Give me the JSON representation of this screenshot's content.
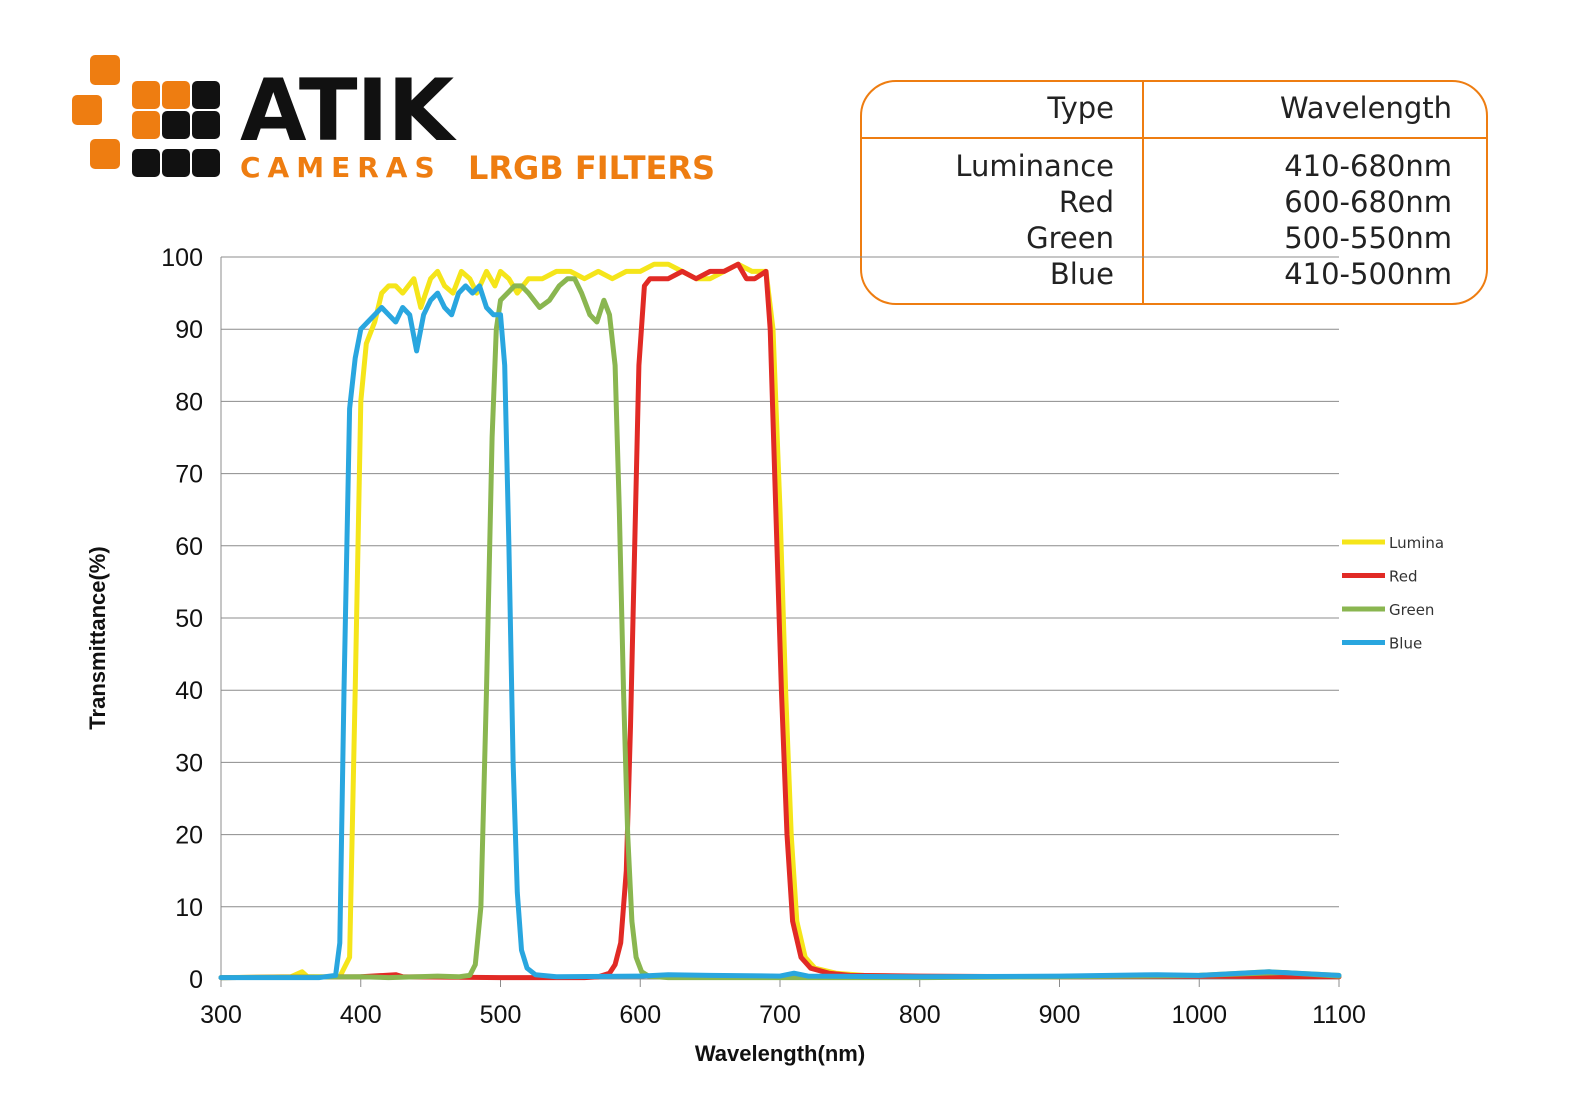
{
  "branding": {
    "logo_text": "ATIK",
    "logo_subtext": "CAMERAS",
    "page_title": "LRGB FILTERS",
    "colors": {
      "orange": "#ee7d11",
      "dark": "#111111"
    }
  },
  "filter_table": {
    "headers": [
      "Type",
      "Wavelength"
    ],
    "rows": [
      {
        "type": "Luminance",
        "wavelength": "410-680nm"
      },
      {
        "type": "Red",
        "wavelength": "600-680nm"
      },
      {
        "type": "Green",
        "wavelength": "500-550nm"
      },
      {
        "type": "Blue",
        "wavelength": "410-500nm"
      }
    ]
  },
  "chart_data": {
    "type": "line",
    "title": "",
    "xlabel": "Wavelength(nm)",
    "ylabel": "Transmittance(%)",
    "xlim": [
      300,
      1100
    ],
    "ylim": [
      0,
      100
    ],
    "xticks": [
      300,
      400,
      500,
      600,
      700,
      800,
      900,
      1000,
      1100
    ],
    "yticks": [
      0,
      10,
      20,
      30,
      40,
      50,
      60,
      70,
      80,
      90,
      100
    ],
    "grid": "horizontal",
    "legend_position": "right",
    "series": [
      {
        "name": "Lumina",
        "color": "#f5e51a",
        "points": [
          [
            300,
            0.2
          ],
          [
            350,
            0.3
          ],
          [
            358,
            1.0
          ],
          [
            362,
            0.3
          ],
          [
            385,
            0.3
          ],
          [
            392,
            3
          ],
          [
            396,
            40
          ],
          [
            400,
            80
          ],
          [
            404,
            88
          ],
          [
            410,
            91
          ],
          [
            415,
            95
          ],
          [
            420,
            96
          ],
          [
            425,
            96
          ],
          [
            430,
            95
          ],
          [
            438,
            97
          ],
          [
            443,
            93
          ],
          [
            450,
            97
          ],
          [
            455,
            98
          ],
          [
            460,
            96
          ],
          [
            466,
            95
          ],
          [
            472,
            98
          ],
          [
            478,
            97
          ],
          [
            483,
            95
          ],
          [
            490,
            98
          ],
          [
            496,
            96
          ],
          [
            500,
            98
          ],
          [
            506,
            97
          ],
          [
            512,
            95
          ],
          [
            520,
            97
          ],
          [
            530,
            97
          ],
          [
            540,
            98
          ],
          [
            550,
            98
          ],
          [
            560,
            97
          ],
          [
            570,
            98
          ],
          [
            580,
            97
          ],
          [
            590,
            98
          ],
          [
            600,
            98
          ],
          [
            610,
            99
          ],
          [
            620,
            99
          ],
          [
            630,
            98
          ],
          [
            640,
            97
          ],
          [
            650,
            97
          ],
          [
            660,
            98
          ],
          [
            670,
            99
          ],
          [
            680,
            98
          ],
          [
            690,
            98
          ],
          [
            695,
            90
          ],
          [
            700,
            65
          ],
          [
            704,
            40
          ],
          [
            708,
            20
          ],
          [
            712,
            8
          ],
          [
            718,
            3
          ],
          [
            725,
            1.5
          ],
          [
            740,
            0.8
          ],
          [
            760,
            0.5
          ],
          [
            800,
            0.3
          ],
          [
            900,
            0.3
          ],
          [
            1000,
            0.5
          ],
          [
            1050,
            1.0
          ],
          [
            1100,
            0.5
          ]
        ]
      },
      {
        "name": "Red",
        "color": "#e12a25",
        "points": [
          [
            300,
            0.2
          ],
          [
            400,
            0.3
          ],
          [
            425,
            0.6
          ],
          [
            430,
            0.3
          ],
          [
            500,
            0.2
          ],
          [
            560,
            0.2
          ],
          [
            570,
            0.3
          ],
          [
            578,
            0.8
          ],
          [
            582,
            2
          ],
          [
            586,
            5
          ],
          [
            590,
            15
          ],
          [
            593,
            35
          ],
          [
            596,
            60
          ],
          [
            599,
            85
          ],
          [
            603,
            96
          ],
          [
            607,
            97
          ],
          [
            612,
            97
          ],
          [
            620,
            97
          ],
          [
            630,
            98
          ],
          [
            640,
            97
          ],
          [
            650,
            98
          ],
          [
            660,
            98
          ],
          [
            670,
            99
          ],
          [
            676,
            97
          ],
          [
            682,
            97
          ],
          [
            690,
            98
          ],
          [
            693,
            90
          ],
          [
            697,
            65
          ],
          [
            701,
            40
          ],
          [
            705,
            20
          ],
          [
            709,
            8
          ],
          [
            715,
            3
          ],
          [
            722,
            1.5
          ],
          [
            735,
            0.8
          ],
          [
            750,
            0.5
          ],
          [
            800,
            0.4
          ],
          [
            900,
            0.3
          ],
          [
            1000,
            0.4
          ],
          [
            1100,
            0.3
          ]
        ]
      },
      {
        "name": "Green",
        "color": "#8ab650",
        "points": [
          [
            300,
            0.2
          ],
          [
            400,
            0.3
          ],
          [
            420,
            0.2
          ],
          [
            455,
            0.4
          ],
          [
            470,
            0.3
          ],
          [
            478,
            0.5
          ],
          [
            482,
            2
          ],
          [
            486,
            10
          ],
          [
            490,
            40
          ],
          [
            494,
            75
          ],
          [
            497,
            90
          ],
          [
            500,
            94
          ],
          [
            505,
            95
          ],
          [
            510,
            96
          ],
          [
            515,
            96
          ],
          [
            520,
            95
          ],
          [
            528,
            93
          ],
          [
            535,
            94
          ],
          [
            542,
            96
          ],
          [
            548,
            97
          ],
          [
            553,
            97
          ],
          [
            558,
            95
          ],
          [
            564,
            92
          ],
          [
            569,
            91
          ],
          [
            574,
            94
          ],
          [
            578,
            92
          ],
          [
            582,
            85
          ],
          [
            585,
            65
          ],
          [
            588,
            40
          ],
          [
            591,
            20
          ],
          [
            594,
            8
          ],
          [
            597,
            3
          ],
          [
            601,
            1
          ],
          [
            606,
            0.4
          ],
          [
            620,
            0.2
          ],
          [
            700,
            0.2
          ],
          [
            800,
            0.2
          ],
          [
            900,
            0.3
          ],
          [
            1000,
            0.5
          ],
          [
            1060,
            0.9
          ],
          [
            1100,
            0.4
          ]
        ]
      },
      {
        "name": "Blue",
        "color": "#29a6df",
        "points": [
          [
            300,
            0.2
          ],
          [
            370,
            0.2
          ],
          [
            382,
            0.5
          ],
          [
            385,
            5
          ],
          [
            388,
            40
          ],
          [
            392,
            79
          ],
          [
            396,
            86
          ],
          [
            400,
            90
          ],
          [
            405,
            91
          ],
          [
            410,
            92
          ],
          [
            415,
            93
          ],
          [
            420,
            92
          ],
          [
            425,
            91
          ],
          [
            430,
            93
          ],
          [
            435,
            92
          ],
          [
            440,
            87
          ],
          [
            445,
            92
          ],
          [
            450,
            94
          ],
          [
            455,
            95
          ],
          [
            460,
            93
          ],
          [
            465,
            92
          ],
          [
            470,
            95
          ],
          [
            475,
            96
          ],
          [
            480,
            95
          ],
          [
            485,
            96
          ],
          [
            490,
            93
          ],
          [
            495,
            92
          ],
          [
            500,
            92
          ],
          [
            503,
            85
          ],
          [
            506,
            60
          ],
          [
            509,
            30
          ],
          [
            512,
            12
          ],
          [
            515,
            4
          ],
          [
            519,
            1.5
          ],
          [
            525,
            0.6
          ],
          [
            540,
            0.3
          ],
          [
            600,
            0.4
          ],
          [
            620,
            0.6
          ],
          [
            650,
            0.5
          ],
          [
            700,
            0.4
          ],
          [
            710,
            0.8
          ],
          [
            720,
            0.4
          ],
          [
            800,
            0.3
          ],
          [
            900,
            0.4
          ],
          [
            970,
            0.6
          ],
          [
            1000,
            0.5
          ],
          [
            1050,
            1.0
          ],
          [
            1100,
            0.5
          ]
        ]
      }
    ]
  }
}
